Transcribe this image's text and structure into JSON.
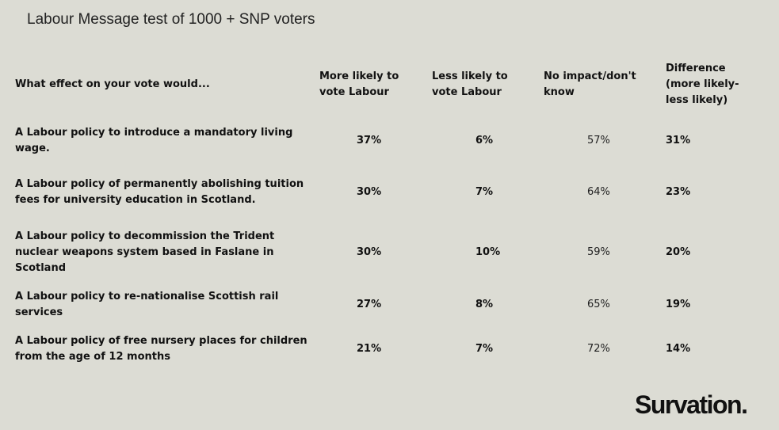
{
  "title": "Labour Message test of 1000 + SNP voters",
  "brand": "Survation.",
  "chart_data": {
    "type": "table",
    "columns": [
      "What effect on your vote would...",
      "More likely to vote Labour",
      "Less likely to vote Labour",
      "No impact/don't know",
      "Difference (more likely-less likely)"
    ],
    "rows": [
      {
        "question": "A Labour policy to introduce a mandatory living wage.",
        "more": "37%",
        "less": "6%",
        "none": "57%",
        "diff": "31%"
      },
      {
        "question": "A Labour policy of permanently abolishing tuition fees for university education in Scotland.",
        "more": "30%",
        "less": "7%",
        "none": "64%",
        "diff": "23%"
      },
      {
        "question": "A Labour policy to decommission the Trident nuclear weapons system based in Faslane in Scotland",
        "more": "30%",
        "less": "10%",
        "none": "59%",
        "diff": "20%"
      },
      {
        "question": "A Labour policy to re-nationalise Scottish rail services",
        "more": "27%",
        "less": "8%",
        "none": "65%",
        "diff": "19%"
      },
      {
        "question": "A Labour policy of free nursery places for children from the age of 12 months",
        "more": "21%",
        "less": "7%",
        "none": "72%",
        "diff": "14%"
      }
    ]
  }
}
